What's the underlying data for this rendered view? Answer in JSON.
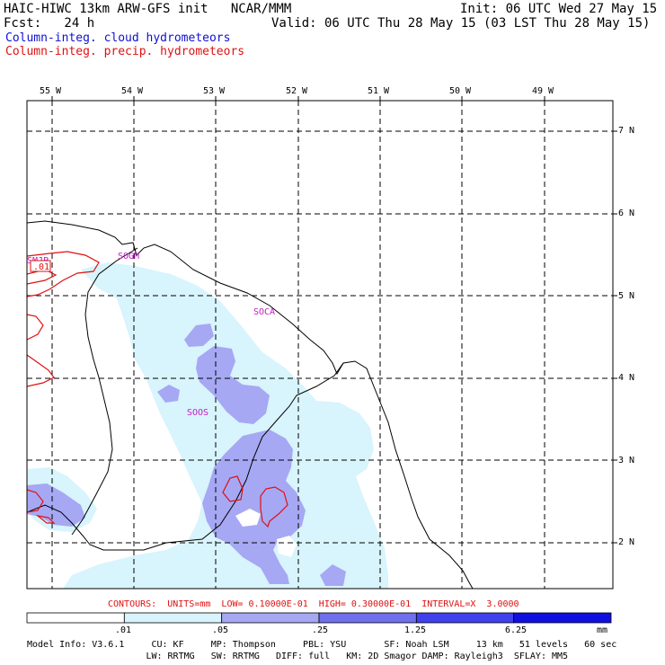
{
  "header": {
    "title_left": "HAIC-HIWC 13km ARW-GFS init   NCAR/MMM",
    "init": "Init: 06 UTC Wed 27 May 15",
    "fcst_label": "Fcst:   24 h",
    "valid": "Valid: 06 UTC Thu 28 May 15 (03 LST Thu 28 May 15)",
    "field1": "Column-integ. cloud hydrometeors",
    "field2": "Column-integ. precip. hydrometeors"
  },
  "map": {
    "lon_labels": [
      "55 W",
      "54 W",
      "53 W",
      "52 W",
      "51 W",
      "50 W",
      "49 W"
    ],
    "lat_labels": [
      "7 N",
      "6 N",
      "5 N",
      "4 N",
      "3 N",
      "2 N"
    ],
    "station_labels": [
      "SMJP",
      "SOGM",
      "SOCA",
      "SOOS"
    ],
    "contour_label": ".01",
    "colors": {
      "light_fill": "#d8f4fc",
      "medium_fill": "#a6a8f4",
      "contour": "#e01010",
      "station": "#c020c0"
    }
  },
  "contours_line": "CONTOURS:  UNITS=mm  LOW= 0.10000E-01  HIGH= 0.30000E-01  INTERVAL=X  3.0000",
  "colorbar": {
    "labels": [
      ".01",
      ".05",
      ".25",
      "1.25",
      "6.25"
    ],
    "unit": "mm",
    "colors": [
      "#ffffff",
      "#d8f4fc",
      "#a6a8f4",
      "#7070ec",
      "#4040ec",
      "#1010e0"
    ]
  },
  "footer": {
    "line1": "Model Info: V3.6.1     CU: KF     MP: Thompson     PBL: YSU       SF: Noah LSM     13 km   51 levels   60 sec",
    "line2": "                      LW: RRTMG   SW: RRTMG   DIFF: full   KM: 2D Smagor DAMP: Rayleigh3  SFLAY: MM5"
  }
}
